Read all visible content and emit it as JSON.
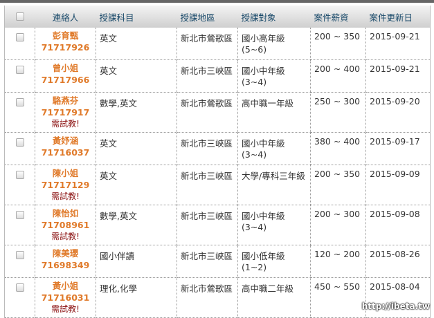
{
  "headers": [
    "連絡人",
    "授課科目",
    "授課地區",
    "授課對象",
    "案件薪資",
    "案件更新日"
  ],
  "rows": [
    {
      "name": "彭育甄",
      "phone": "71717926",
      "note": "",
      "subject": "英文",
      "area": "新北市鶯歌區",
      "target": "國小高年級(5~6)",
      "salary": "200 ~ 350",
      "date": "2015-09-21"
    },
    {
      "name": "曾小姐",
      "phone": "71717966",
      "note": "",
      "subject": "英文",
      "area": "新北市三峽區",
      "target": "國小中年級(3~4)",
      "salary": "200 ~ 400",
      "date": "2015-09-21"
    },
    {
      "name": "駱燕芬",
      "phone": "71717917",
      "note": "需試教!",
      "subject": "數學,英文",
      "area": "新北市鶯歌區",
      "target": "高中職一年級",
      "salary": "250 ~ 300",
      "date": "2015-09-20"
    },
    {
      "name": "黃妤涵",
      "phone": "71716037",
      "note": "",
      "subject": "英文",
      "area": "新北市三峽區",
      "target": "國小中年級(3~4)",
      "salary": "380 ~ 400",
      "date": "2015-09-17"
    },
    {
      "name": "陳小姐",
      "phone": "71717129",
      "note": "需試教!",
      "subject": "英文",
      "area": "新北市三峽區",
      "target": "大學/專科三年級",
      "salary": "200 ~ 350",
      "date": "2015-09-09"
    },
    {
      "name": "陳怡如",
      "phone": "71708961",
      "note": "需試教!",
      "subject": "數學,英文",
      "area": "新北市三峽區",
      "target": "國小中年級(3~4)",
      "salary": "200 ~ 300",
      "date": "2015-09-08"
    },
    {
      "name": "陳美瓔",
      "phone": "71698349",
      "note": "",
      "subject": "國小伴讀",
      "area": "新北市三峽區",
      "target": "國小低年級(1~2)",
      "salary": "120 ~ 200",
      "date": "2015-08-26"
    },
    {
      "name": "黃小姐",
      "phone": "71716031",
      "note": "需試教!",
      "subject": "理化,化學",
      "area": "新北市鶯歌區",
      "target": "高中職二年級",
      "salary": "450 ~ 550",
      "date": "2015-08-04"
    }
  ],
  "watermark": "http://ibeta.tw"
}
